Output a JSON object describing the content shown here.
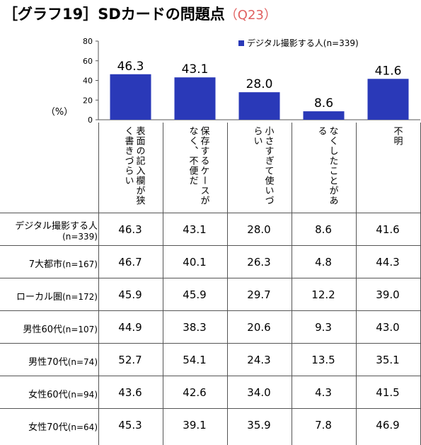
{
  "header": {
    "title_main": "［グラフ19］SDカードの問題点",
    "title_code": "（Q23）"
  },
  "chart_data": {
    "type": "bar",
    "categories": [
      "表面の記入欄が狭く書きづらい",
      "保存するケースがなく、不便だ",
      "小さすぎて使いづらい",
      "なくしたことがある",
      "不明"
    ],
    "series": [
      {
        "name": "デジタル撮影する人(n=339)",
        "values": [
          46.3,
          43.1,
          28.0,
          8.6,
          41.6
        ]
      }
    ],
    "value_labels": [
      "46.3",
      "43.1",
      "28.0",
      "8.6",
      "41.6"
    ],
    "ylim": [
      0,
      80
    ],
    "yticks": [
      "0",
      "20",
      "40",
      "60",
      "80"
    ],
    "ylabel": "（%）",
    "bar_color": "#2a39b8",
    "legend_position": "top-right"
  },
  "table": {
    "rows": [
      {
        "label": "デジタル撮影する人",
        "sub": "(n=339)",
        "values": [
          "46.3",
          "43.1",
          "28.0",
          "8.6",
          "41.6"
        ]
      },
      {
        "label": "7大都市",
        "sub": "(n=167)",
        "values": [
          "46.7",
          "40.1",
          "26.3",
          "4.8",
          "44.3"
        ]
      },
      {
        "label": "ローカル圏",
        "sub": "(n=172)",
        "values": [
          "45.9",
          "45.9",
          "29.7",
          "12.2",
          "39.0"
        ]
      },
      {
        "label": "男性60代",
        "sub": "(n=107)",
        "values": [
          "44.9",
          "38.3",
          "20.6",
          "9.3",
          "43.0"
        ]
      },
      {
        "label": "男性70代",
        "sub": "(n=74)",
        "values": [
          "52.7",
          "54.1",
          "24.3",
          "13.5",
          "35.1"
        ]
      },
      {
        "label": "女性60代",
        "sub": "(n=94)",
        "values": [
          "43.6",
          "42.6",
          "34.0",
          "4.3",
          "41.5"
        ]
      },
      {
        "label": "女性70代",
        "sub": "(n=64)",
        "values": [
          "45.3",
          "39.1",
          "35.9",
          "7.8",
          "46.9"
        ]
      }
    ]
  }
}
